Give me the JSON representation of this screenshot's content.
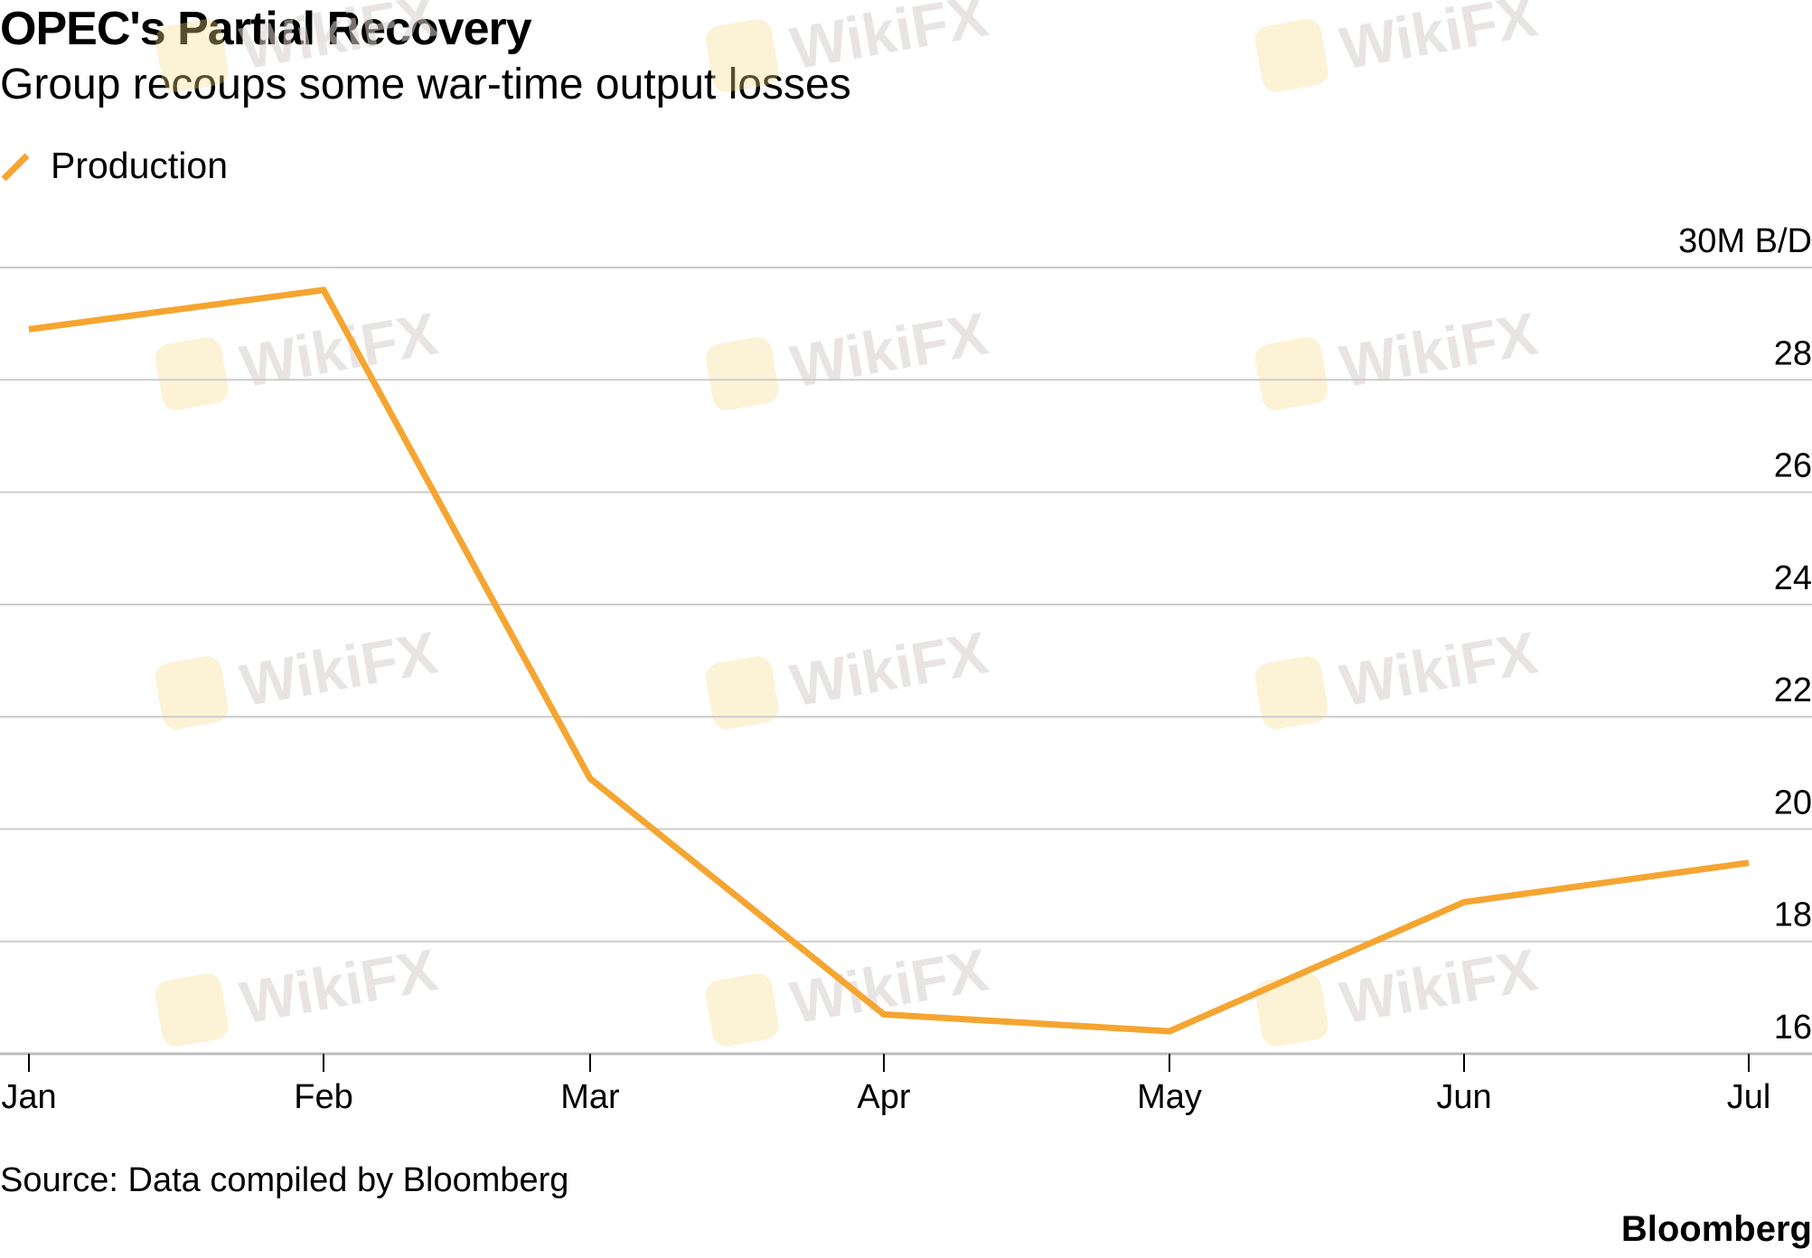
{
  "header": {
    "title": "OPEC's Partial Recovery",
    "subtitle": "Group recoups some war-time output losses"
  },
  "legend": {
    "label": "Production"
  },
  "footer": {
    "source": "Source: Data compiled by Bloomberg",
    "brand": "Bloomberg"
  },
  "watermark": {
    "text": "WikiFX"
  },
  "colors": {
    "line": "#F5A530",
    "grid": "#CCCCCC",
    "axis": "#BBBBBB",
    "text": "#000000"
  },
  "chart_data": {
    "type": "line",
    "title": "OPEC's Partial Recovery",
    "subtitle": "Group recoups some war-time output losses",
    "categories": [
      "Jan",
      "Feb",
      "Mar",
      "Apr",
      "May",
      "Jun",
      "Jul"
    ],
    "series": [
      {
        "name": "Production",
        "values": [
          28.9,
          29.6,
          20.9,
          16.7,
          16.4,
          18.7,
          19.4
        ]
      }
    ],
    "y_ticks": [
      {
        "value": 30,
        "label": "30M B/D"
      },
      {
        "value": 28,
        "label": "28"
      },
      {
        "value": 26,
        "label": "26"
      },
      {
        "value": 24,
        "label": "24"
      },
      {
        "value": 22,
        "label": "22"
      },
      {
        "value": 20,
        "label": "20"
      },
      {
        "value": 18,
        "label": "18"
      },
      {
        "value": 16,
        "label": "16"
      }
    ],
    "ylim": [
      16,
      30
    ],
    "y_axis_side": "right",
    "grid": true,
    "legend_position": "top-left"
  }
}
